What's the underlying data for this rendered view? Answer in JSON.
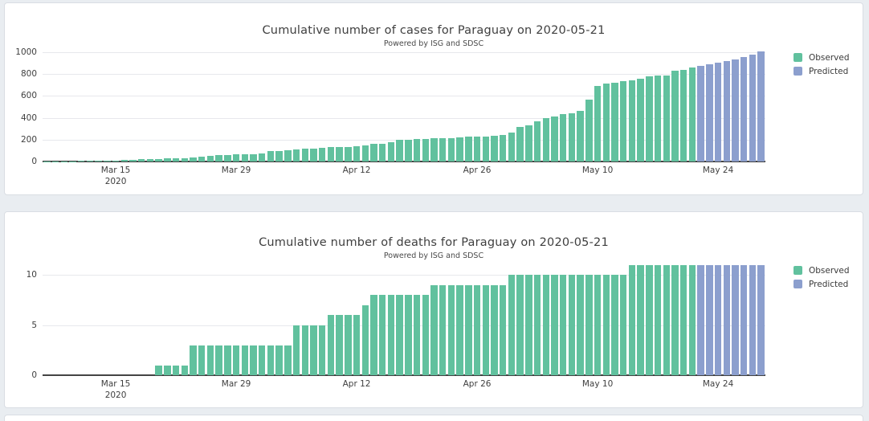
{
  "page": {
    "background_color": "#e9edf1",
    "card_color": "#ffffff"
  },
  "colors": {
    "observed": "#61c19e",
    "predicted": "#8c9fce",
    "axis": "#444444",
    "grid": "#e7e8ec"
  },
  "chart_data": [
    {
      "type": "bar",
      "title": "Cumulative number of cases for Paraguay on 2020-05-21",
      "subtitle": "Powered by ISG and SDSC",
      "xlabel": "",
      "ylabel": "",
      "ylim": [
        0,
        1030
      ],
      "y_ticks": [
        0,
        200,
        400,
        600,
        800,
        1000
      ],
      "grid": true,
      "legend_position": "top-right",
      "x_dates": [
        "Mar 7",
        "Mar 8",
        "Mar 9",
        "Mar 10",
        "Mar 11",
        "Mar 12",
        "Mar 13",
        "Mar 14",
        "Mar 15",
        "Mar 16",
        "Mar 17",
        "Mar 18",
        "Mar 19",
        "Mar 20",
        "Mar 21",
        "Mar 22",
        "Mar 23",
        "Mar 24",
        "Mar 25",
        "Mar 26",
        "Mar 27",
        "Mar 28",
        "Mar 29",
        "Mar 30",
        "Mar 31",
        "Apr 1",
        "Apr 2",
        "Apr 3",
        "Apr 4",
        "Apr 5",
        "Apr 6",
        "Apr 7",
        "Apr 8",
        "Apr 9",
        "Apr 10",
        "Apr 11",
        "Apr 12",
        "Apr 13",
        "Apr 14",
        "Apr 15",
        "Apr 16",
        "Apr 17",
        "Apr 18",
        "Apr 19",
        "Apr 20",
        "Apr 21",
        "Apr 22",
        "Apr 23",
        "Apr 24",
        "Apr 25",
        "Apr 26",
        "Apr 27",
        "Apr 28",
        "Apr 29",
        "Apr 30",
        "May 1",
        "May 2",
        "May 3",
        "May 4",
        "May 5",
        "May 6",
        "May 7",
        "May 8",
        "May 9",
        "May 10",
        "May 11",
        "May 12",
        "May 13",
        "May 14",
        "May 15",
        "May 16",
        "May 17",
        "May 18",
        "May 19",
        "May 20",
        "May 21",
        "May 22",
        "May 23",
        "May 24",
        "May 25",
        "May 26",
        "May 27",
        "May 28",
        "May 29"
      ],
      "x_tick_labels": [
        {
          "label": "Mar 15",
          "sub": "2020",
          "index": 8
        },
        {
          "label": "Mar 29",
          "index": 22
        },
        {
          "label": "Apr 12",
          "index": 36
        },
        {
          "label": "Apr 26",
          "index": 50
        },
        {
          "label": "May 10",
          "index": 64
        },
        {
          "label": "May 24",
          "index": 78
        }
      ],
      "series": [
        {
          "name": "Observed",
          "color": "#61c19e",
          "values": [
            1,
            1,
            1,
            1,
            5,
            6,
            9,
            11,
            11,
            13,
            18,
            22,
            22,
            22,
            27,
            27,
            27,
            37,
            41,
            52,
            56,
            59,
            64,
            64,
            65,
            77,
            92,
            96,
            104,
            113,
            115,
            119,
            124,
            129,
            133,
            134,
            139,
            147,
            159,
            161,
            174,
            199,
            202,
            206,
            208,
            213,
            213,
            215,
            223,
            228,
            228,
            231,
            233,
            239,
            266,
            313,
            333,
            370,
            396,
            415,
            431,
            440,
            462,
            563,
            689,
            713,
            724,
            737,
            740,
            754,
            778,
            786,
            788,
            833,
            838,
            862
          ]
        },
        {
          "name": "Predicted",
          "color": "#8c9fce",
          "values": [
            872,
            887,
            902,
            918,
            935,
            953,
            978,
            1008
          ]
        }
      ]
    },
    {
      "type": "bar",
      "title": "Cumulative number of deaths for Paraguay on 2020-05-21",
      "subtitle": "Powered by ISG and SDSC",
      "xlabel": "",
      "ylabel": "",
      "ylim": [
        0,
        11.5
      ],
      "y_ticks": [
        0,
        5,
        10
      ],
      "grid": true,
      "legend_position": "top-right",
      "x_dates": [
        "Mar 7",
        "Mar 8",
        "Mar 9",
        "Mar 10",
        "Mar 11",
        "Mar 12",
        "Mar 13",
        "Mar 14",
        "Mar 15",
        "Mar 16",
        "Mar 17",
        "Mar 18",
        "Mar 19",
        "Mar 20",
        "Mar 21",
        "Mar 22",
        "Mar 23",
        "Mar 24",
        "Mar 25",
        "Mar 26",
        "Mar 27",
        "Mar 28",
        "Mar 29",
        "Mar 30",
        "Mar 31",
        "Apr 1",
        "Apr 2",
        "Apr 3",
        "Apr 4",
        "Apr 5",
        "Apr 6",
        "Apr 7",
        "Apr 8",
        "Apr 9",
        "Apr 10",
        "Apr 11",
        "Apr 12",
        "Apr 13",
        "Apr 14",
        "Apr 15",
        "Apr 16",
        "Apr 17",
        "Apr 18",
        "Apr 19",
        "Apr 20",
        "Apr 21",
        "Apr 22",
        "Apr 23",
        "Apr 24",
        "Apr 25",
        "Apr 26",
        "Apr 27",
        "Apr 28",
        "Apr 29",
        "Apr 30",
        "May 1",
        "May 2",
        "May 3",
        "May 4",
        "May 5",
        "May 6",
        "May 7",
        "May 8",
        "May 9",
        "May 10",
        "May 11",
        "May 12",
        "May 13",
        "May 14",
        "May 15",
        "May 16",
        "May 17",
        "May 18",
        "May 19",
        "May 20",
        "May 21",
        "May 22",
        "May 23",
        "May 24",
        "May 25",
        "May 26",
        "May 27",
        "May 28",
        "May 29"
      ],
      "x_tick_labels": [
        {
          "label": "Mar 15",
          "sub": "2020",
          "index": 8
        },
        {
          "label": "Mar 29",
          "index": 22
        },
        {
          "label": "Apr 12",
          "index": 36
        },
        {
          "label": "Apr 26",
          "index": 50
        },
        {
          "label": "May 10",
          "index": 64
        },
        {
          "label": "May 24",
          "index": 78
        }
      ],
      "series": [
        {
          "name": "Observed",
          "color": "#61c19e",
          "values": [
            0,
            0,
            0,
            0,
            0,
            0,
            0,
            0,
            0,
            0,
            0,
            0,
            0,
            1,
            1,
            1,
            1,
            3,
            3,
            3,
            3,
            3,
            3,
            3,
            3,
            3,
            3,
            3,
            3,
            5,
            5,
            5,
            5,
            6,
            6,
            6,
            6,
            7,
            8,
            8,
            8,
            8,
            8,
            8,
            8,
            9,
            9,
            9,
            9,
            9,
            9,
            9,
            9,
            9,
            10,
            10,
            10,
            10,
            10,
            10,
            10,
            10,
            10,
            10,
            10,
            10,
            10,
            10,
            11,
            11,
            11,
            11,
            11,
            11,
            11,
            11
          ]
        },
        {
          "name": "Predicted",
          "color": "#8c9fce",
          "values": [
            11,
            11,
            11,
            11,
            11,
            11,
            11,
            11
          ]
        }
      ]
    }
  ]
}
